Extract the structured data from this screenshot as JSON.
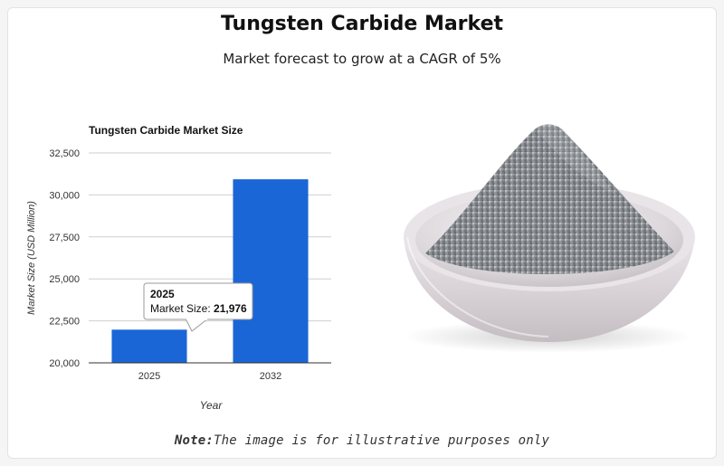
{
  "header": {
    "title": "Tungsten Carbide Market",
    "subtitle": "Market forecast to grow at a CAGR of 5%"
  },
  "note": {
    "label": "Note:",
    "text": "The image is for illustrative purposes only"
  },
  "tooltip": {
    "year": "2025",
    "label": "Market Size: ",
    "value": "21,976"
  },
  "image": {
    "subject": "bowl of tungsten carbide powder"
  },
  "colors": {
    "bar": "#1a66d6",
    "grid": "#cfcfcf",
    "axis": "#333333"
  },
  "chart_data": {
    "type": "bar",
    "title": "Tungsten Carbide Market Size",
    "xlabel": "Year",
    "ylabel": "Market Size (USD Million)",
    "categories": [
      "2025",
      "2032"
    ],
    "values": [
      21976,
      30930
    ],
    "ylim": [
      20000,
      32500
    ],
    "yticks": [
      20000,
      22500,
      25000,
      27500,
      30000,
      32500
    ],
    "ytick_labels": [
      "20,000",
      "22,500",
      "25,000",
      "27,500",
      "30,000",
      "32,500"
    ],
    "grid": true,
    "legend": "none"
  }
}
